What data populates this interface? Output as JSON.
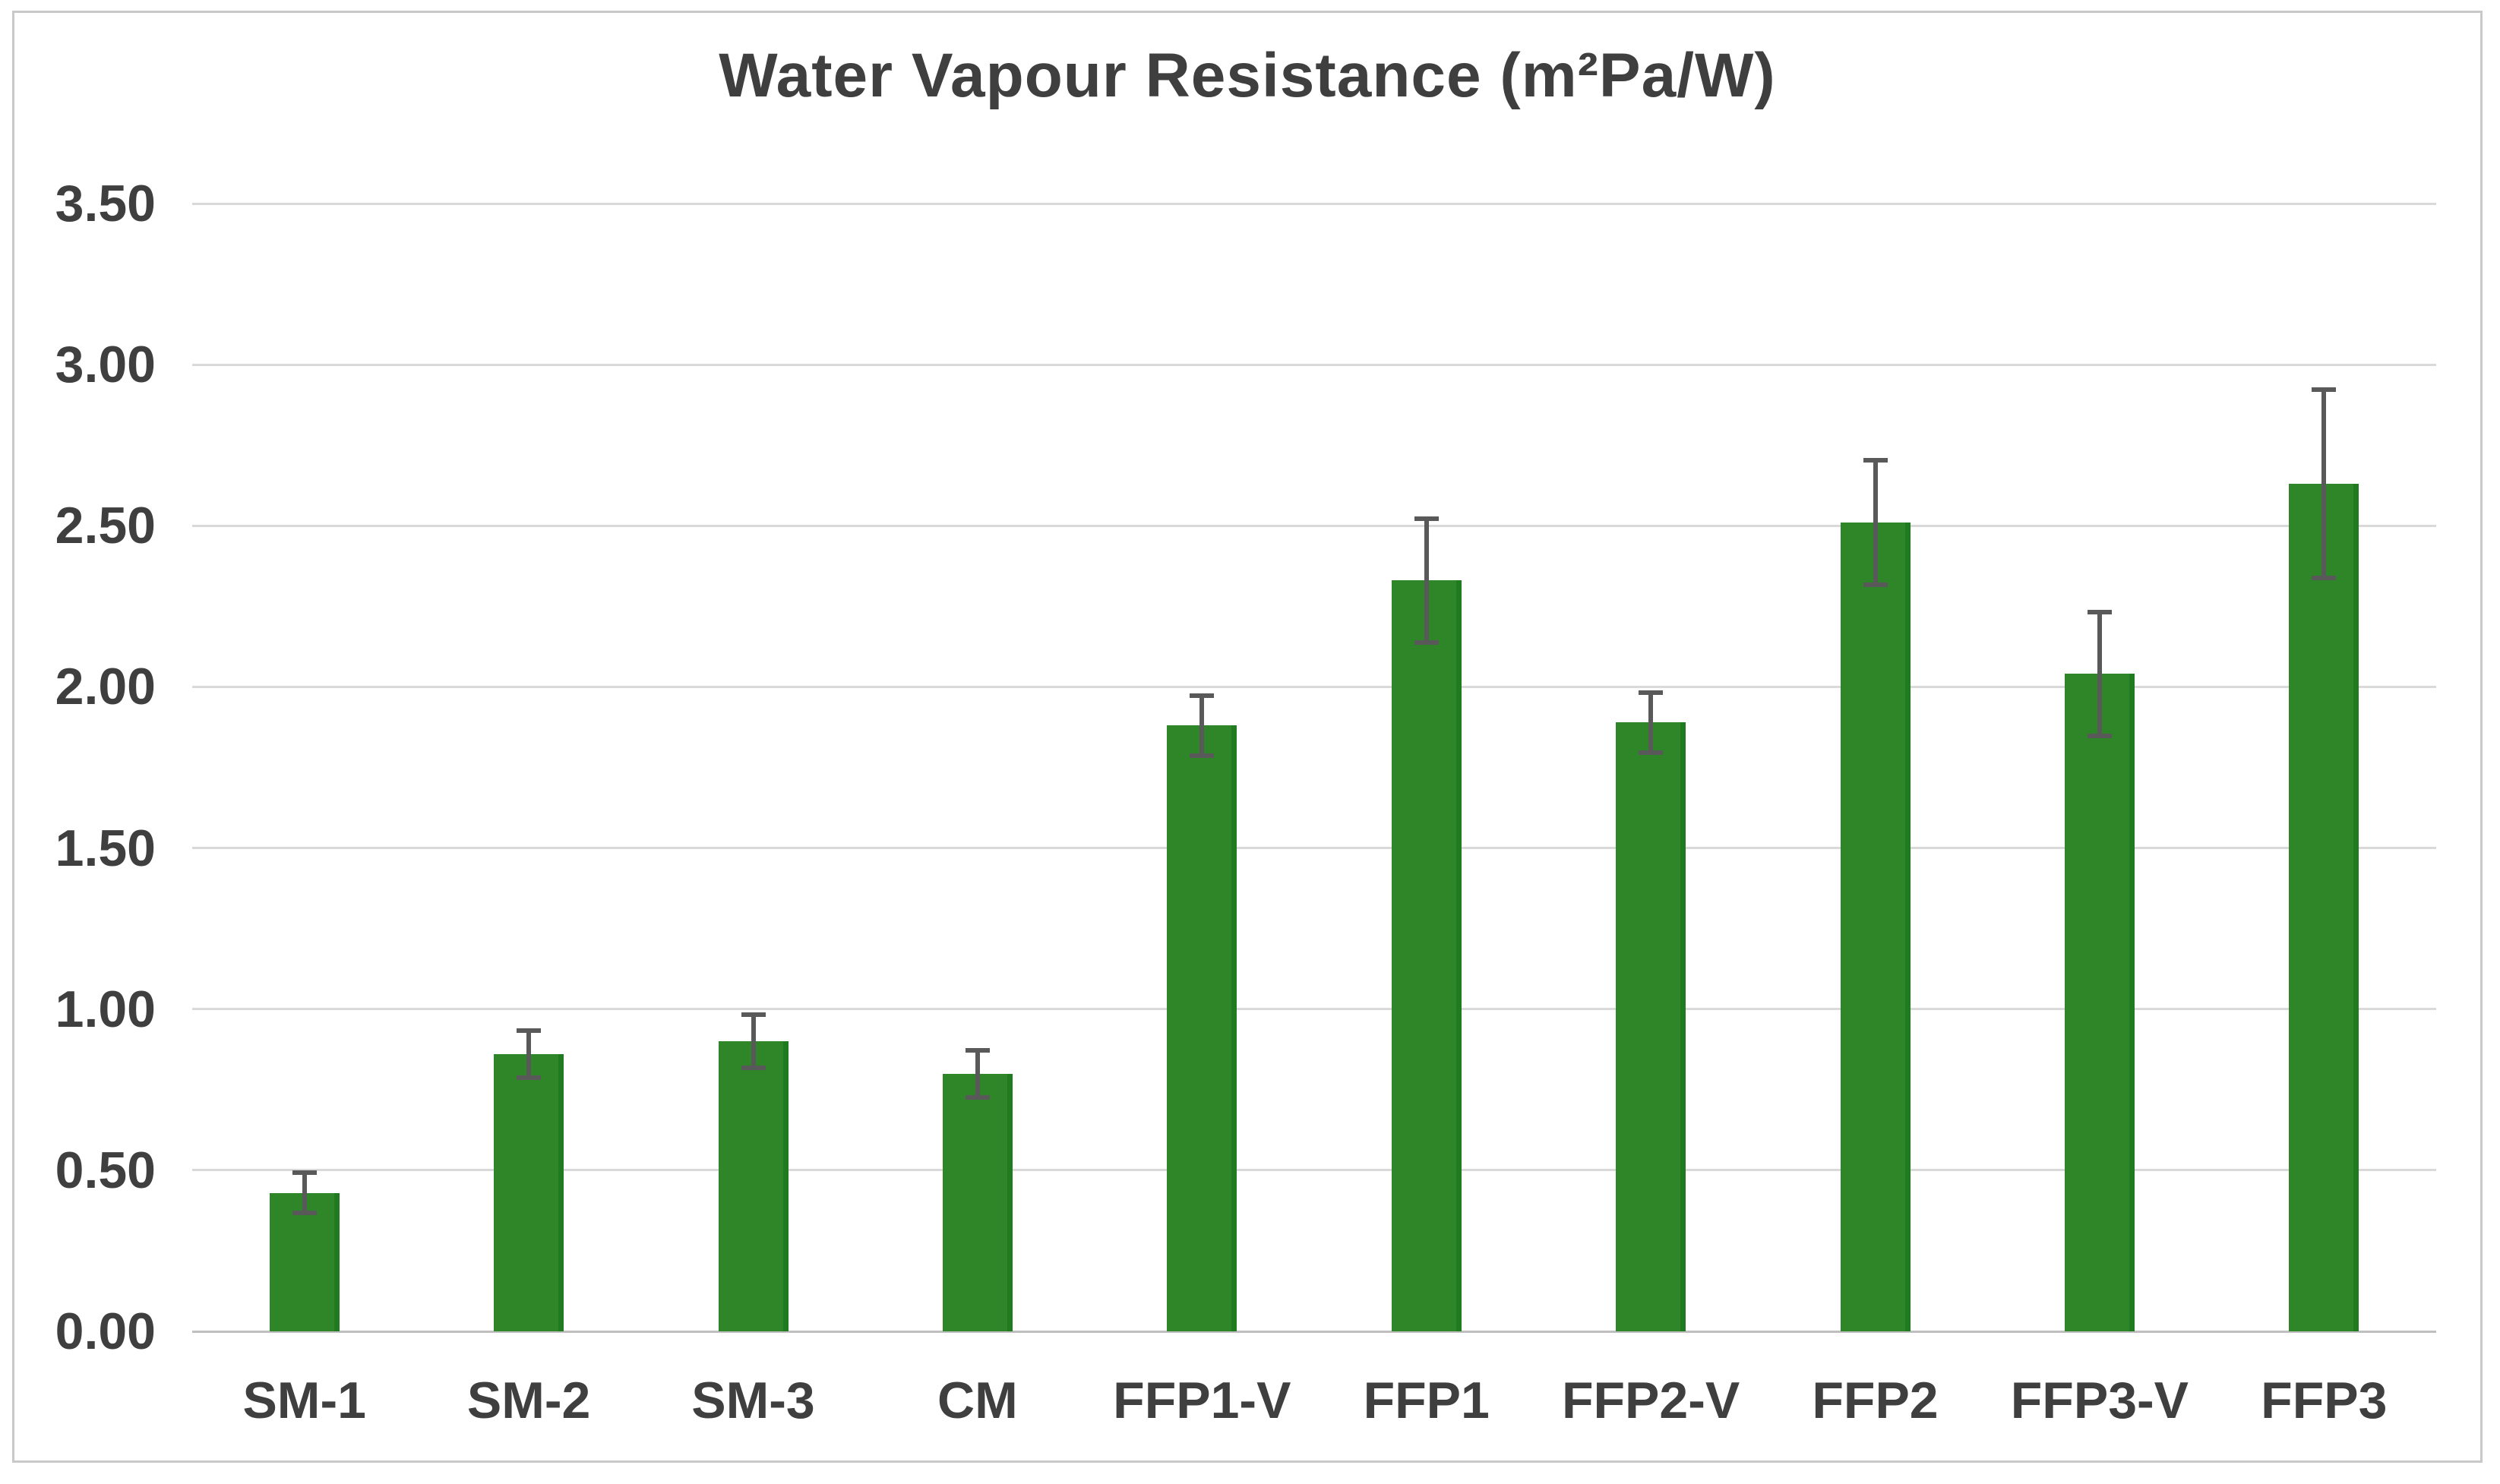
{
  "figure": {
    "title": "Water Vapour Resistance (m²Pa/W)"
  },
  "chart_data": {
    "type": "bar",
    "title": "Water Vapour Resistance (m²Pa/W)",
    "categories": [
      "SM-1",
      "SM-2",
      "SM-3",
      "CM",
      "FFP1-V",
      "FFP1",
      "FFP2-V",
      "FFP2",
      "FFP3-V",
      "FFP3"
    ],
    "values": [
      0.43,
      0.86,
      0.9,
      0.8,
      1.88,
      2.33,
      1.89,
      2.51,
      2.04,
      2.63
    ],
    "errors": [
      0.07,
      0.08,
      0.09,
      0.08,
      0.1,
      0.2,
      0.1,
      0.2,
      0.2,
      0.3
    ],
    "xlabel": "",
    "ylabel": "",
    "ylim": [
      0,
      3.5
    ],
    "ytick_step": 0.5,
    "ytick_labels": [
      "0.00",
      "0.50",
      "1.00",
      "1.50",
      "2.00",
      "2.50",
      "3.00",
      "3.50"
    ],
    "grid": true,
    "legend": "none",
    "colors": {
      "bar_fill": "#2e8628",
      "bar_edge": "#207a20",
      "error_bar": "#595959",
      "gridline": "#d9d9d9",
      "axis_line": "#bfbfbf",
      "text": "#3f3f3f",
      "title": "#3f3f3f",
      "figure_border": "#c9c9c9",
      "background": "#ffffff"
    }
  }
}
